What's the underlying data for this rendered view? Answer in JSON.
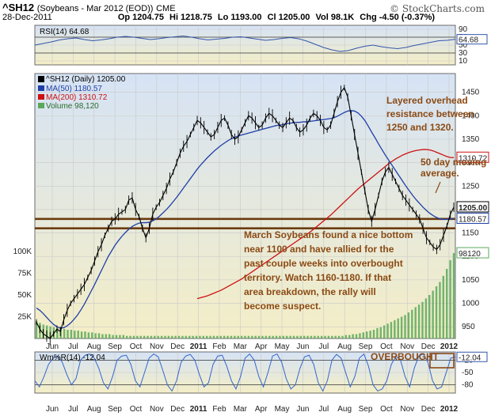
{
  "header": {
    "symbol": "^SH12",
    "description": "(Soybeans - Mar 2012 (EOD))",
    "exchange": "CME",
    "date": "28-Dec-2011",
    "open": "Op 1204.75",
    "high": "Hi 1218.75",
    "low": "Lo 1193.00",
    "close": "Cl 1205.00",
    "volume": "Vol 98.1K",
    "change": "Chg -4.50 (-0.37%)",
    "brand": "© StockCharts.com"
  },
  "colors": {
    "panel_top": "#d6e3f5",
    "panel_bottom": "#f4eec6",
    "price": "#000000",
    "ma50": "#1f3fa8",
    "ma200": "#cc1111",
    "volume": "#5aa85a",
    "support_lines": "#6b3c10",
    "annotation": "#8b4a14",
    "rsi_line": "#3355aa",
    "wr_line": "#3366cc"
  },
  "chart_data": [
    {
      "type": "line",
      "panel": "rsi",
      "title": "RSI(14) 64.68",
      "ylim": [
        0,
        100
      ],
      "y_ticks": [
        10,
        30,
        50,
        70,
        90
      ],
      "grid": true,
      "last_value_label": "64.68",
      "series": [
        {
          "name": "RSI(14)",
          "values": [
            50,
            54,
            58,
            63,
            66,
            68,
            64,
            61,
            63,
            66,
            70,
            72,
            70,
            67,
            64,
            66,
            69,
            71,
            73,
            70,
            66,
            63,
            65,
            67,
            70,
            71,
            68,
            65,
            62,
            64,
            67,
            69,
            66,
            60,
            52,
            44,
            38,
            34,
            36,
            42,
            47,
            50,
            46,
            43,
            41,
            44,
            49,
            53,
            57,
            61,
            62,
            64.68
          ]
        }
      ]
    },
    {
      "type": "line",
      "panel": "price",
      "title": "^SH12 (Daily) 1205.00",
      "legend_position": "top-left",
      "legend": [
        "MA(50) 1180.57",
        "MA(200) 1310.72",
        "Volume 98,120"
      ],
      "x_ticks": [
        "Jun",
        "Jul",
        "Aug",
        "Sep",
        "Oct",
        "Nov",
        "Dec",
        "2011",
        "Feb",
        "Mar",
        "Apr",
        "May",
        "Jun",
        "Jul",
        "Aug",
        "Sep",
        "Oct",
        "Nov",
        "Dec",
        "2012"
      ],
      "y_ticks": [
        950,
        1000,
        1050,
        1100,
        1150,
        1200,
        1250,
        1300,
        1350,
        1400,
        1450
      ],
      "ylim": [
        925,
        1490
      ],
      "volume_ticks": [
        "25K",
        "50K",
        "75K",
        "100K"
      ],
      "grid": true,
      "support_lines": [
        1160,
        1180
      ],
      "last_value_labels": [
        "1310.72",
        "1205.00",
        "1180.57",
        "98120"
      ],
      "series": [
        {
          "name": "^SH12",
          "values": [
            960,
            945,
            935,
            930,
            925,
            935,
            945,
            940,
            965,
            985,
            1000,
            1010,
            1020,
            1030,
            1040,
            1055,
            1070,
            1090,
            1110,
            1125,
            1145,
            1160,
            1175,
            1180,
            1190,
            1195,
            1200,
            1220,
            1225,
            1200,
            1185,
            1160,
            1140,
            1160,
            1190,
            1205,
            1215,
            1230,
            1245,
            1265,
            1280,
            1300,
            1320,
            1335,
            1345,
            1360,
            1375,
            1390,
            1385,
            1375,
            1365,
            1355,
            1360,
            1375,
            1390,
            1395,
            1380,
            1360,
            1350,
            1355,
            1370,
            1385,
            1400,
            1395,
            1385,
            1375,
            1380,
            1395,
            1405,
            1400,
            1390,
            1380,
            1375,
            1385,
            1395,
            1390,
            1375,
            1365,
            1370,
            1380,
            1395,
            1405,
            1400,
            1390,
            1375,
            1370,
            1380,
            1405,
            1430,
            1450,
            1460,
            1440,
            1400,
            1360,
            1320,
            1280,
            1240,
            1200,
            1175,
            1200,
            1230,
            1260,
            1280,
            1290,
            1275,
            1260,
            1245,
            1230,
            1220,
            1210,
            1200,
            1190,
            1180,
            1160,
            1140,
            1130,
            1120,
            1115,
            1125,
            1145,
            1165,
            1190,
            1205
          ]
        },
        {
          "name": "MA(50)",
          "values": [
            990,
            985,
            978,
            970,
            962,
            955,
            950,
            947,
            948,
            952,
            958,
            966,
            975,
            986,
            998,
            1012,
            1026,
            1040,
            1055,
            1070,
            1085,
            1100,
            1112,
            1124,
            1134,
            1143,
            1151,
            1158,
            1164,
            1168,
            1171,
            1172,
            1172,
            1173,
            1176,
            1180,
            1186,
            1193,
            1200,
            1208,
            1217,
            1226,
            1236,
            1246,
            1256,
            1266,
            1276,
            1286,
            1295,
            1303,
            1311,
            1318,
            1325,
            1331,
            1337,
            1342,
            1347,
            1351,
            1354,
            1357,
            1359,
            1361,
            1363,
            1365,
            1367,
            1369,
            1371,
            1373,
            1375,
            1377,
            1379,
            1380,
            1381,
            1383,
            1384,
            1385,
            1386,
            1386,
            1387,
            1387,
            1388,
            1389,
            1390,
            1391,
            1392,
            1393,
            1394,
            1396,
            1399,
            1403,
            1407,
            1410,
            1411,
            1410,
            1406,
            1399,
            1390,
            1378,
            1365,
            1353,
            1340,
            1328,
            1316,
            1305,
            1294,
            1283,
            1272,
            1261,
            1250,
            1240,
            1230,
            1221,
            1213,
            1205,
            1198,
            1192,
            1187,
            1183,
            1180,
            1179,
            1179,
            1180,
            1180.57
          ]
        },
        {
          "name": "MA(200)",
          "values": [
            null,
            null,
            null,
            null,
            null,
            null,
            null,
            null,
            null,
            null,
            null,
            null,
            null,
            null,
            null,
            null,
            null,
            null,
            null,
            null,
            null,
            null,
            null,
            null,
            null,
            null,
            null,
            null,
            null,
            null,
            null,
            null,
            null,
            null,
            null,
            null,
            null,
            null,
            null,
            null,
            null,
            null,
            null,
            null,
            null,
            null,
            null,
            1010,
            1012,
            1014,
            1016,
            1019,
            1022,
            1025,
            1028,
            1032,
            1036,
            1040,
            1044,
            1048,
            1052,
            1057,
            1062,
            1067,
            1072,
            1077,
            1082,
            1087,
            1092,
            1097,
            1102,
            1107,
            1112,
            1117,
            1122,
            1127,
            1132,
            1137,
            1142,
            1147,
            1152,
            1158,
            1164,
            1170,
            1176,
            1182,
            1188,
            1195,
            1202,
            1209,
            1216,
            1223,
            1230,
            1237,
            1244,
            1250,
            1256,
            1262,
            1268,
            1274,
            1280,
            1286,
            1292,
            1298,
            1303,
            1308,
            1312,
            1316,
            1319,
            1322,
            1324,
            1326,
            1327,
            1328,
            1328,
            1327,
            1325,
            1322,
            1319,
            1316,
            1313,
            1311,
            1310.72
          ]
        },
        {
          "name": "Volume",
          "values": [
            20000,
            18000,
            16000,
            15000,
            14000,
            13000,
            12000,
            12000,
            11000,
            10000,
            10000,
            9000,
            9000,
            8000,
            8000,
            7000,
            7000,
            6000,
            6000,
            5000,
            5000,
            5000,
            4000,
            4000,
            4000,
            4000,
            3000,
            3000,
            3000,
            3000,
            3000,
            3000,
            3000,
            3000,
            3000,
            3000,
            3000,
            3000,
            3000,
            3000,
            3000,
            3000,
            3000,
            3000,
            3000,
            3000,
            3000,
            3000,
            3000,
            3000,
            3000,
            3000,
            3000,
            3000,
            3000,
            3000,
            3000,
            3000,
            3000,
            3000,
            3000,
            3000,
            3000,
            3000,
            3000,
            3000,
            3000,
            3000,
            3000,
            3000,
            3000,
            3000,
            3000,
            3000,
            3000,
            3000,
            3000,
            3000,
            3000,
            3000,
            3000,
            3000,
            3000,
            3000,
            3000,
            3000,
            3000,
            3000,
            3000,
            4000,
            4000,
            5000,
            5000,
            6000,
            7000,
            8000,
            9000,
            10000,
            12000,
            13000,
            15000,
            17000,
            19000,
            21000,
            23000,
            25000,
            27000,
            30000,
            33000,
            36000,
            39000,
            42000,
            46000,
            50000,
            55000,
            60000,
            65000,
            72000,
            80000,
            90000,
            98120
          ]
        }
      ],
      "annotations": [
        {
          "text": [
            "Layered overhead",
            "resistance between",
            "1250 and 1320."
          ]
        },
        {
          "text": [
            "50 day moving",
            "average."
          ]
        },
        {
          "text": [
            "March Soybeans found a nice bottom",
            "near 1100 and have rallied for the",
            "past couple weeks into overbought",
            "territory. Watch 1160-1180.  If that",
            "area breakdown, the rally will",
            "become suspect."
          ]
        }
      ]
    },
    {
      "type": "line",
      "panel": "williams",
      "title": "Wm%R(14) -12.04",
      "ylim": [
        -100,
        0
      ],
      "y_ticks": [
        -20,
        -50,
        -80
      ],
      "grid": true,
      "annotation": "OVERBOUGHT",
      "last_value_label": "-12.04",
      "series": [
        {
          "name": "Wm%R(14)",
          "values": [
            -70,
            -85,
            -60,
            -30,
            -15,
            -10,
            -25,
            -55,
            -80,
            -65,
            -20,
            -8,
            -5,
            -15,
            -40,
            -75,
            -90,
            -60,
            -20,
            -10,
            -8,
            -30,
            -70,
            -85,
            -50,
            -15,
            -5,
            -12,
            -45,
            -80,
            -95,
            -70,
            -25,
            -10,
            -6,
            -20,
            -55,
            -85,
            -75,
            -30,
            -10,
            -8,
            -35,
            -70,
            -90,
            -60,
            -15,
            -5,
            -20,
            -60,
            -85,
            -50,
            -10,
            -5,
            -25,
            -65,
            -90,
            -80,
            -40,
            -12,
            -8,
            -30,
            -75,
            -95,
            -70,
            -20,
            -6,
            -15,
            -50,
            -85,
            -60,
            -15,
            -5,
            -35,
            -80,
            -95,
            -90,
            -70,
            -30,
            -10,
            -20,
            -60,
            -85,
            -40,
            -10,
            -5,
            -25,
            -70,
            -90,
            -85,
            -50,
            -15,
            -12.04
          ]
        }
      ]
    }
  ]
}
